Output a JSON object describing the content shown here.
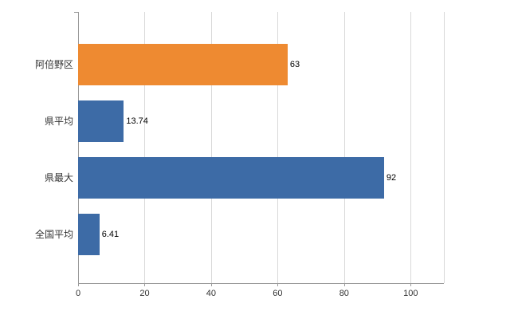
{
  "chart_data": {
    "type": "bar",
    "orientation": "horizontal",
    "title": "",
    "xlabel": "",
    "ylabel": "",
    "categories": [
      "阿倍野区",
      "県平均",
      "県最大",
      "全国平均"
    ],
    "values": [
      63,
      13.74,
      92,
      6.41
    ],
    "value_labels": [
      "63",
      "13.74",
      "92",
      "6.41"
    ],
    "bar_colors": [
      "#ee8a31",
      "#3d6ba6",
      "#3d6ba6",
      "#3d6ba6"
    ],
    "xlim": [
      0,
      110
    ],
    "x_ticks": [
      0,
      20,
      40,
      60,
      80,
      100
    ],
    "x_tick_labels": [
      "0",
      "20",
      "40",
      "60",
      "80",
      "100"
    ],
    "grid": "vertical",
    "legend": "none"
  },
  "colors": {
    "background": "#ffffff",
    "grid": "#d9d9d9",
    "axis": "#9b9b9b",
    "text": "#333333",
    "value_text": "#000000",
    "orange": "#ee8a31",
    "blue": "#3d6ba6"
  }
}
